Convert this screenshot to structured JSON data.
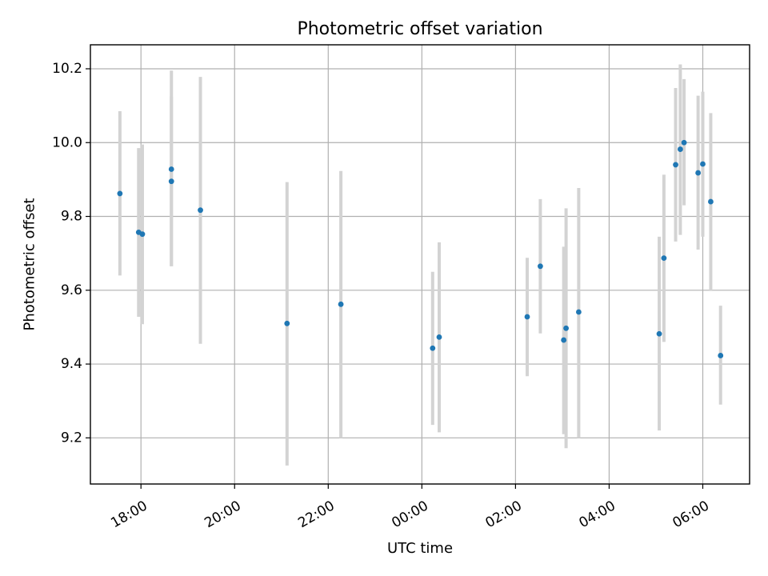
{
  "chart_data": {
    "type": "scatter",
    "title": "Photometric offset variation",
    "xlabel": "UTC time",
    "ylabel": "Photometric offset",
    "x_unit": "hours (UTC clock, values past 24:00 fall on the next day)",
    "xlim": [
      16.92,
      31.0
    ],
    "ylim": [
      9.075,
      10.265
    ],
    "x_ticks": [
      {
        "value": 18,
        "label": "18:00"
      },
      {
        "value": 20,
        "label": "20:00"
      },
      {
        "value": 22,
        "label": "22:00"
      },
      {
        "value": 24,
        "label": "00:00"
      },
      {
        "value": 26,
        "label": "02:00"
      },
      {
        "value": 28,
        "label": "04:00"
      },
      {
        "value": 30,
        "label": "06:00"
      }
    ],
    "y_ticks": [
      {
        "value": 9.2,
        "label": "9.2"
      },
      {
        "value": 9.4,
        "label": "9.4"
      },
      {
        "value": 9.6,
        "label": "9.6"
      },
      {
        "value": 9.8,
        "label": "9.8"
      },
      {
        "value": 10.0,
        "label": "10.0"
      },
      {
        "value": 10.2,
        "label": "10.2"
      }
    ],
    "grid": true,
    "colors": {
      "point": "#1f77b4",
      "error_bar": "#d3d3d3"
    },
    "points": [
      {
        "x": 17.55,
        "y": 9.862,
        "lo": 9.64,
        "hi": 10.085
      },
      {
        "x": 17.95,
        "y": 9.757,
        "lo": 9.528,
        "hi": 9.985
      },
      {
        "x": 18.03,
        "y": 9.752,
        "lo": 9.508,
        "hi": 9.995
      },
      {
        "x": 18.65,
        "y": 9.928,
        "lo": 9.665,
        "hi": 10.195
      },
      {
        "x": 18.65,
        "y": 9.895,
        "lo": 9.665,
        "hi": 10.125
      },
      {
        "x": 19.27,
        "y": 9.817,
        "lo": 9.455,
        "hi": 10.178
      },
      {
        "x": 21.12,
        "y": 9.51,
        "lo": 9.125,
        "hi": 9.893
      },
      {
        "x": 22.27,
        "y": 9.562,
        "lo": 9.2,
        "hi": 9.923
      },
      {
        "x": 24.23,
        "y": 9.443,
        "lo": 9.235,
        "hi": 9.65
      },
      {
        "x": 24.37,
        "y": 9.473,
        "lo": 9.215,
        "hi": 9.73
      },
      {
        "x": 26.25,
        "y": 9.528,
        "lo": 9.367,
        "hi": 9.688
      },
      {
        "x": 26.53,
        "y": 9.665,
        "lo": 9.483,
        "hi": 9.847
      },
      {
        "x": 27.03,
        "y": 9.465,
        "lo": 9.21,
        "hi": 9.718
      },
      {
        "x": 27.08,
        "y": 9.497,
        "lo": 9.172,
        "hi": 9.822
      },
      {
        "x": 27.35,
        "y": 9.541,
        "lo": 9.2,
        "hi": 9.877
      },
      {
        "x": 29.07,
        "y": 9.482,
        "lo": 9.22,
        "hi": 9.745
      },
      {
        "x": 29.17,
        "y": 9.687,
        "lo": 9.46,
        "hi": 9.913
      },
      {
        "x": 29.42,
        "y": 9.94,
        "lo": 9.732,
        "hi": 10.148
      },
      {
        "x": 29.52,
        "y": 9.982,
        "lo": 9.75,
        "hi": 10.212
      },
      {
        "x": 29.6,
        "y": 10.0,
        "lo": 9.83,
        "hi": 10.172
      },
      {
        "x": 29.9,
        "y": 9.918,
        "lo": 9.71,
        "hi": 10.127
      },
      {
        "x": 30.0,
        "y": 9.942,
        "lo": 9.745,
        "hi": 10.138
      },
      {
        "x": 30.17,
        "y": 9.84,
        "lo": 9.598,
        "hi": 10.08
      },
      {
        "x": 30.38,
        "y": 9.423,
        "lo": 9.29,
        "hi": 9.558
      }
    ]
  }
}
